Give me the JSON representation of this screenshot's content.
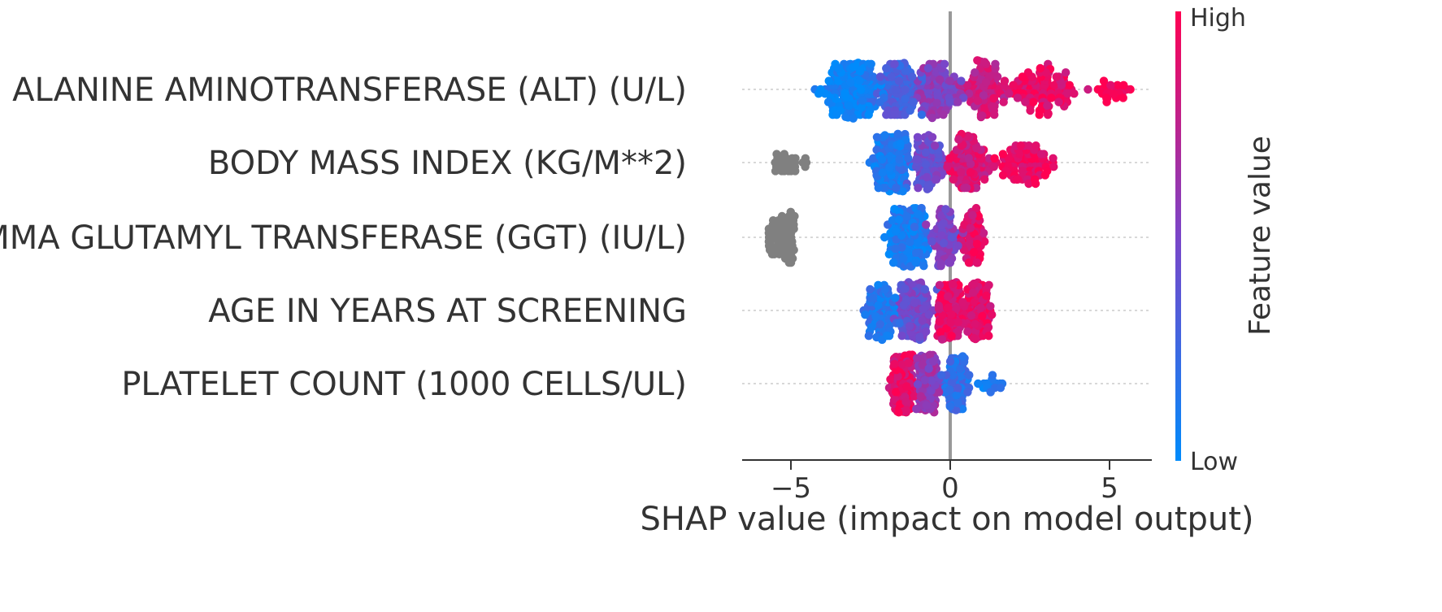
{
  "chart_data": {
    "type": "scatter",
    "subtype": "shap-beeswarm",
    "title": "",
    "xlabel": "SHAP value (impact on model output)",
    "xlim": [
      -6.5,
      6.5
    ],
    "xticks": [
      -5,
      0,
      5
    ],
    "xtick_labels": [
      "−5",
      "0",
      "5"
    ],
    "grid": false,
    "colorbar": {
      "title": "Feature value",
      "high_label": "High",
      "low_label": "Low",
      "low_color": "#008bfb",
      "high_color": "#ff0052"
    },
    "colors": {
      "missing": "#808080",
      "zero_line": "#999999",
      "row_guide": "#cccccc"
    },
    "features": [
      {
        "name": "ALANINE AMINOTRANSFERASE (ALT) (U/L)",
        "range": [
          -5.0,
          5.8
        ],
        "clusters": [
          {
            "center": -3.1,
            "spread": 0.9,
            "count": 200,
            "value": 0.06
          },
          {
            "center": -1.6,
            "spread": 0.7,
            "count": 120,
            "value": 0.3
          },
          {
            "center": -0.4,
            "spread": 0.7,
            "count": 110,
            "value": 0.55
          },
          {
            "center": 1.0,
            "spread": 0.8,
            "count": 110,
            "value": 0.8
          },
          {
            "center": 2.9,
            "spread": 1.1,
            "count": 110,
            "value": 0.92
          },
          {
            "center": 5.1,
            "spread": 0.5,
            "count": 25,
            "value": 1.0
          }
        ]
      },
      {
        "name": "BODY MASS INDEX (KG/M**2)",
        "range": [
          -5.6,
          3.5
        ],
        "missing_cluster": {
          "center": -5.0,
          "spread": 0.5,
          "count": 30
        },
        "clusters": [
          {
            "center": -1.8,
            "spread": 0.6,
            "count": 210,
            "value": 0.12
          },
          {
            "center": -0.7,
            "spread": 0.5,
            "count": 90,
            "value": 0.45
          },
          {
            "center": 0.6,
            "spread": 0.7,
            "count": 120,
            "value": 0.85
          },
          {
            "center": 2.3,
            "spread": 0.9,
            "count": 90,
            "value": 0.95
          }
        ]
      },
      {
        "name": "GAMMA GLUTAMYL TRANSFERASE (GGT) (IU/L)",
        "range": [
          -5.9,
          1.3
        ],
        "missing_cluster": {
          "center": -5.3,
          "spread": 0.4,
          "count": 70
        },
        "clusters": [
          {
            "center": -1.3,
            "spread": 0.55,
            "count": 240,
            "value": 0.1
          },
          {
            "center": -0.2,
            "spread": 0.45,
            "count": 90,
            "value": 0.5
          },
          {
            "center": 0.7,
            "spread": 0.4,
            "count": 80,
            "value": 0.9
          }
        ]
      },
      {
        "name": "AGE IN YEARS AT SCREENING",
        "range": [
          -3.3,
          1.8
        ],
        "clusters": [
          {
            "center": -2.2,
            "spread": 0.5,
            "count": 90,
            "value": 0.15
          },
          {
            "center": -1.1,
            "spread": 0.5,
            "count": 160,
            "value": 0.45
          },
          {
            "center": 0.0,
            "spread": 0.4,
            "count": 200,
            "value": 0.9
          },
          {
            "center": 0.9,
            "spread": 0.4,
            "count": 120,
            "value": 0.9
          }
        ]
      },
      {
        "name": "PLATELET COUNT (1000 CELLS/UL)",
        "range": [
          -2.3,
          1.9
        ],
        "clusters": [
          {
            "center": -1.5,
            "spread": 0.35,
            "count": 200,
            "value": 0.9
          },
          {
            "center": -0.7,
            "spread": 0.35,
            "count": 170,
            "value": 0.6
          },
          {
            "center": 0.2,
            "spread": 0.4,
            "count": 100,
            "value": 0.2
          },
          {
            "center": 1.3,
            "spread": 0.3,
            "count": 15,
            "value": 0.08
          }
        ]
      }
    ]
  }
}
